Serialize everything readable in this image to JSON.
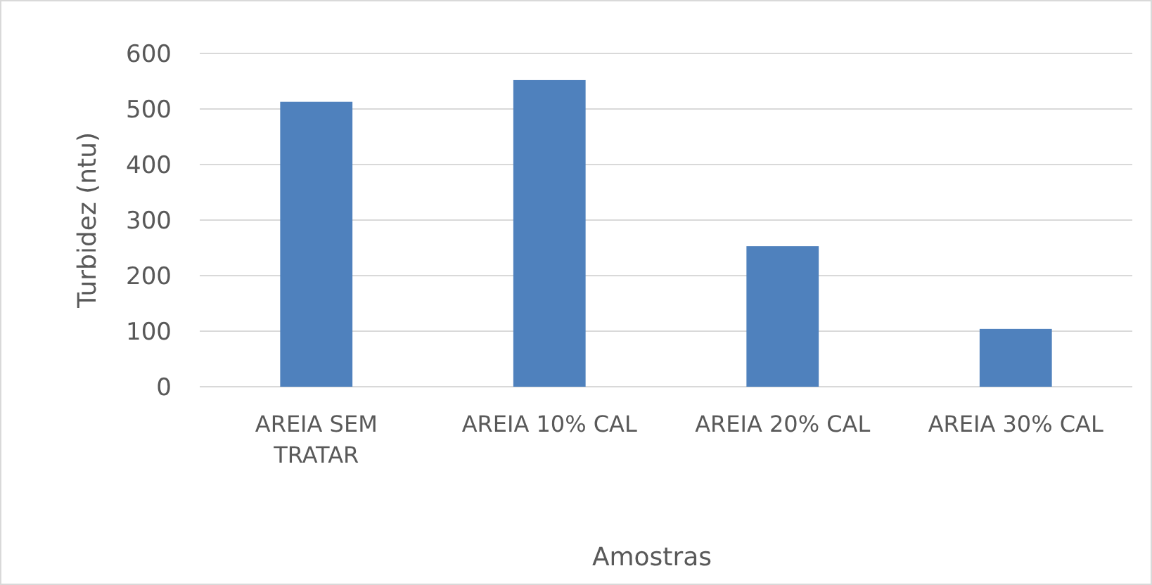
{
  "chart_data": {
    "type": "bar",
    "xlabel": "Amostras",
    "ylabel": "Turbidez  (ntu)",
    "categories": [
      "AREIA SEM TRATAR",
      "AREIA 10% CAL",
      "AREIA 20% CAL",
      "AREIA 30% CAL"
    ],
    "values": [
      513,
      552,
      253,
      104
    ],
    "color": "#4f81bd",
    "ylim": [
      0,
      600
    ],
    "yticks": [
      0,
      100,
      200,
      300,
      400,
      500,
      600
    ],
    "grid": "y"
  }
}
